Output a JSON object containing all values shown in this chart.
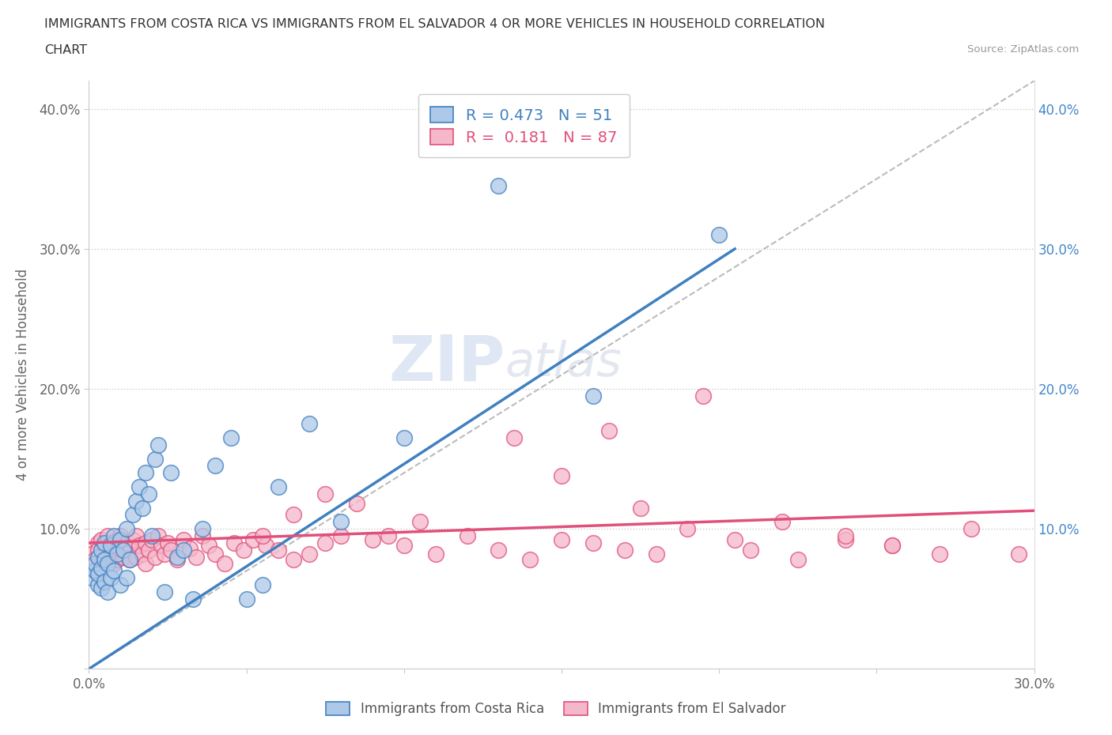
{
  "title_line1": "IMMIGRANTS FROM COSTA RICA VS IMMIGRANTS FROM EL SALVADOR 4 OR MORE VEHICLES IN HOUSEHOLD CORRELATION",
  "title_line2": "CHART",
  "source": "Source: ZipAtlas.com",
  "ylabel": "4 or more Vehicles in Household",
  "x_label_bottom": "Immigrants from Costa Rica",
  "xlim": [
    0.0,
    0.3
  ],
  "ylim": [
    0.0,
    0.42
  ],
  "x_ticks": [
    0.0,
    0.05,
    0.1,
    0.15,
    0.2,
    0.25,
    0.3
  ],
  "y_ticks": [
    0.0,
    0.1,
    0.2,
    0.3,
    0.4
  ],
  "y_tick_labels": [
    "",
    "10.0%",
    "20.0%",
    "30.0%",
    "40.0%"
  ],
  "watermark_zip": "ZIP",
  "watermark_atlas": "atlas",
  "R_blue": 0.473,
  "N_blue": 51,
  "R_pink": 0.181,
  "N_pink": 87,
  "blue_scatter_color": "#adc8e8",
  "blue_line_color": "#4080c0",
  "pink_scatter_color": "#f5b8cb",
  "pink_line_color": "#e0507a",
  "dashed_line_color": "#bbbbbb",
  "legend_label_blue": "Immigrants from Costa Rica",
  "legend_label_pink": "Immigrants from El Salvador",
  "blue_line_x0": 0.0,
  "blue_line_y0": 0.0,
  "blue_line_x1": 0.205,
  "blue_line_y1": 0.3,
  "pink_line_x0": 0.0,
  "pink_line_y0": 0.09,
  "pink_line_x1": 0.3,
  "pink_line_y1": 0.113,
  "dash_line_x0": 0.0,
  "dash_line_y0": 0.0,
  "dash_line_x1": 0.3,
  "dash_line_y1": 0.42,
  "blue_scatter_x": [
    0.001,
    0.002,
    0.002,
    0.003,
    0.003,
    0.003,
    0.004,
    0.004,
    0.004,
    0.005,
    0.005,
    0.005,
    0.006,
    0.006,
    0.007,
    0.007,
    0.008,
    0.008,
    0.009,
    0.01,
    0.01,
    0.011,
    0.012,
    0.012,
    0.013,
    0.014,
    0.015,
    0.016,
    0.017,
    0.018,
    0.019,
    0.02,
    0.021,
    0.022,
    0.024,
    0.026,
    0.028,
    0.03,
    0.033,
    0.036,
    0.04,
    0.045,
    0.05,
    0.055,
    0.06,
    0.07,
    0.08,
    0.1,
    0.13,
    0.16,
    0.2
  ],
  "blue_scatter_y": [
    0.065,
    0.07,
    0.075,
    0.06,
    0.068,
    0.08,
    0.058,
    0.072,
    0.085,
    0.062,
    0.078,
    0.09,
    0.055,
    0.075,
    0.065,
    0.088,
    0.07,
    0.095,
    0.082,
    0.06,
    0.092,
    0.085,
    0.065,
    0.1,
    0.078,
    0.11,
    0.12,
    0.13,
    0.115,
    0.14,
    0.125,
    0.095,
    0.15,
    0.16,
    0.055,
    0.14,
    0.08,
    0.085,
    0.05,
    0.1,
    0.145,
    0.165,
    0.05,
    0.06,
    0.13,
    0.175,
    0.105,
    0.165,
    0.345,
    0.195,
    0.31
  ],
  "pink_scatter_x": [
    0.001,
    0.002,
    0.003,
    0.003,
    0.004,
    0.004,
    0.005,
    0.005,
    0.006,
    0.006,
    0.007,
    0.007,
    0.008,
    0.008,
    0.009,
    0.009,
    0.01,
    0.01,
    0.011,
    0.012,
    0.013,
    0.013,
    0.014,
    0.015,
    0.015,
    0.016,
    0.017,
    0.018,
    0.018,
    0.019,
    0.02,
    0.021,
    0.022,
    0.023,
    0.024,
    0.025,
    0.026,
    0.028,
    0.03,
    0.032,
    0.034,
    0.036,
    0.038,
    0.04,
    0.043,
    0.046,
    0.049,
    0.052,
    0.056,
    0.06,
    0.065,
    0.07,
    0.075,
    0.08,
    0.09,
    0.1,
    0.11,
    0.12,
    0.13,
    0.14,
    0.15,
    0.16,
    0.17,
    0.18,
    0.195,
    0.21,
    0.225,
    0.24,
    0.255,
    0.27,
    0.135,
    0.15,
    0.165,
    0.055,
    0.065,
    0.075,
    0.085,
    0.095,
    0.105,
    0.175,
    0.19,
    0.205,
    0.22,
    0.24,
    0.255,
    0.28,
    0.295
  ],
  "pink_scatter_y": [
    0.082,
    0.078,
    0.09,
    0.085,
    0.075,
    0.092,
    0.08,
    0.088,
    0.078,
    0.095,
    0.082,
    0.09,
    0.075,
    0.086,
    0.092,
    0.078,
    0.085,
    0.095,
    0.08,
    0.09,
    0.085,
    0.078,
    0.092,
    0.08,
    0.095,
    0.088,
    0.082,
    0.09,
    0.075,
    0.085,
    0.092,
    0.08,
    0.095,
    0.088,
    0.082,
    0.09,
    0.085,
    0.078,
    0.092,
    0.086,
    0.08,
    0.095,
    0.088,
    0.082,
    0.075,
    0.09,
    0.085,
    0.092,
    0.088,
    0.085,
    0.078,
    0.082,
    0.09,
    0.095,
    0.092,
    0.088,
    0.082,
    0.095,
    0.085,
    0.078,
    0.092,
    0.09,
    0.085,
    0.082,
    0.195,
    0.085,
    0.078,
    0.092,
    0.088,
    0.082,
    0.165,
    0.138,
    0.17,
    0.095,
    0.11,
    0.125,
    0.118,
    0.095,
    0.105,
    0.115,
    0.1,
    0.092,
    0.105,
    0.095,
    0.088,
    0.1,
    0.082
  ]
}
